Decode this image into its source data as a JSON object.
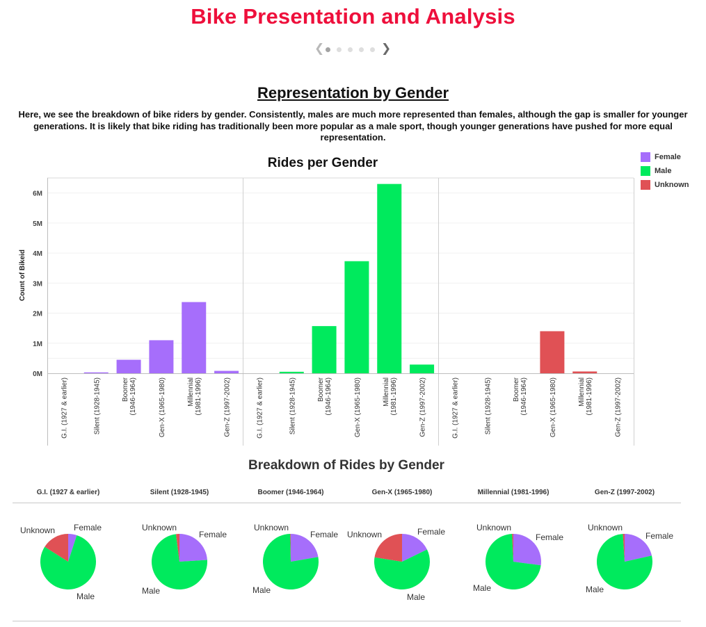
{
  "page": {
    "title": "Bike Presentation and Analysis",
    "nav": {
      "prev_icon": "chevron-left-icon",
      "next_icon": "chevron-right-icon",
      "dot_count": 5,
      "active_dot": 0
    },
    "section_heading": "Representation by Gender",
    "intro": "Here, we see the breakdown of bike riders by gender. Consistently, males are much more represented than females, although the gap is smaller for younger generations. It is likely that bike riding has traditionally been more popular as a male sport, though younger generations have pushed for more equal representation."
  },
  "colors": {
    "Female": "#a66efb",
    "Male": "#00ea5d",
    "Unknown": "#e05155",
    "title": "#ee0f3b"
  },
  "legend": [
    {
      "label": "Female",
      "color": "#a66efb"
    },
    {
      "label": "Male",
      "color": "#00ea5d"
    },
    {
      "label": "Unknown",
      "color": "#e05155"
    }
  ],
  "chart_data": [
    {
      "type": "bar",
      "title": "Rides per Gender",
      "ylabel": "Count of Bikeid",
      "yticks": [
        "0M",
        "1M",
        "2M",
        "3M",
        "4M",
        "5M",
        "6M"
      ],
      "ylim": [
        0,
        6500000
      ],
      "grid": true,
      "legend_position": "top-right",
      "panels": [
        "Female",
        "Male",
        "Unknown"
      ],
      "categories": [
        "G.I. (1927 & earlier)",
        "Silent (1928-1945)",
        "Boomer (1946-1964)",
        "Gen-X (1965-1980)",
        "Millennial (1981-1996)",
        "Gen-Z (1997-2002)"
      ],
      "series": [
        {
          "name": "Female",
          "values": [
            2000,
            30000,
            450000,
            1100000,
            2370000,
            80000
          ]
        },
        {
          "name": "Male",
          "values": [
            5000,
            50000,
            1570000,
            3730000,
            6300000,
            290000
          ]
        },
        {
          "name": "Unknown",
          "values": [
            1000,
            2000,
            5000,
            1400000,
            60000,
            3000
          ]
        }
      ]
    },
    {
      "type": "pie",
      "title": "Breakdown of Rides by Gender",
      "labels": [
        "Female",
        "Male",
        "Unknown"
      ],
      "pies": [
        {
          "category": "G.I. (1927 & earlier)",
          "values": [
            0.05,
            0.79,
            0.16
          ]
        },
        {
          "category": "Silent (1928-1945)",
          "values": [
            0.24,
            0.74,
            0.02
          ]
        },
        {
          "category": "Boomer (1946-1964)",
          "values": [
            0.223,
            0.774,
            0.003
          ]
        },
        {
          "category": "Gen-X (1965-1980)",
          "values": [
            0.178,
            0.597,
            0.225
          ]
        },
        {
          "category": "Millennial (1981-1996)",
          "values": [
            0.271,
            0.722,
            0.007
          ]
        },
        {
          "category": "Gen-Z (1997-2002)",
          "values": [
            0.215,
            0.775,
            0.01
          ]
        }
      ]
    }
  ]
}
